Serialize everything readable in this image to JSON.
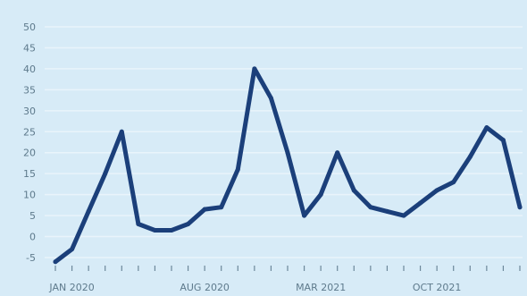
{
  "chart_data": {
    "type": "line",
    "title": "",
    "xlabel": "",
    "ylabel": "",
    "ylim": [
      -5,
      50
    ],
    "yticks": [
      -5,
      0,
      5,
      10,
      15,
      20,
      25,
      30,
      35,
      40,
      45,
      50
    ],
    "ytick_labels": [
      "-5",
      "0",
      "5",
      "10",
      "15",
      "20",
      "25",
      "30",
      "35",
      "40",
      "45",
      "50"
    ],
    "x_tick_labels": [
      {
        "index": 1,
        "label": "JAN 2020"
      },
      {
        "index": 9,
        "label": "AUG 2020"
      },
      {
        "index": 16,
        "label": "MAR 2021"
      },
      {
        "index": 23,
        "label": "OCT 2021"
      }
    ],
    "grid": true,
    "legend": "none",
    "colors": {
      "line": "#1b3f7a",
      "background": "#d7ebf7",
      "grid": "#e9f4fb",
      "ticks": "#5e7a8c"
    },
    "series": [
      {
        "values": [
          -6,
          -3,
          6,
          15,
          25,
          3,
          1.5,
          1.5,
          3,
          6.5,
          7,
          16,
          40,
          33,
          20,
          5,
          10,
          20,
          11,
          7,
          6,
          5,
          8,
          11,
          13,
          19,
          26,
          23,
          7
        ]
      }
    ]
  }
}
